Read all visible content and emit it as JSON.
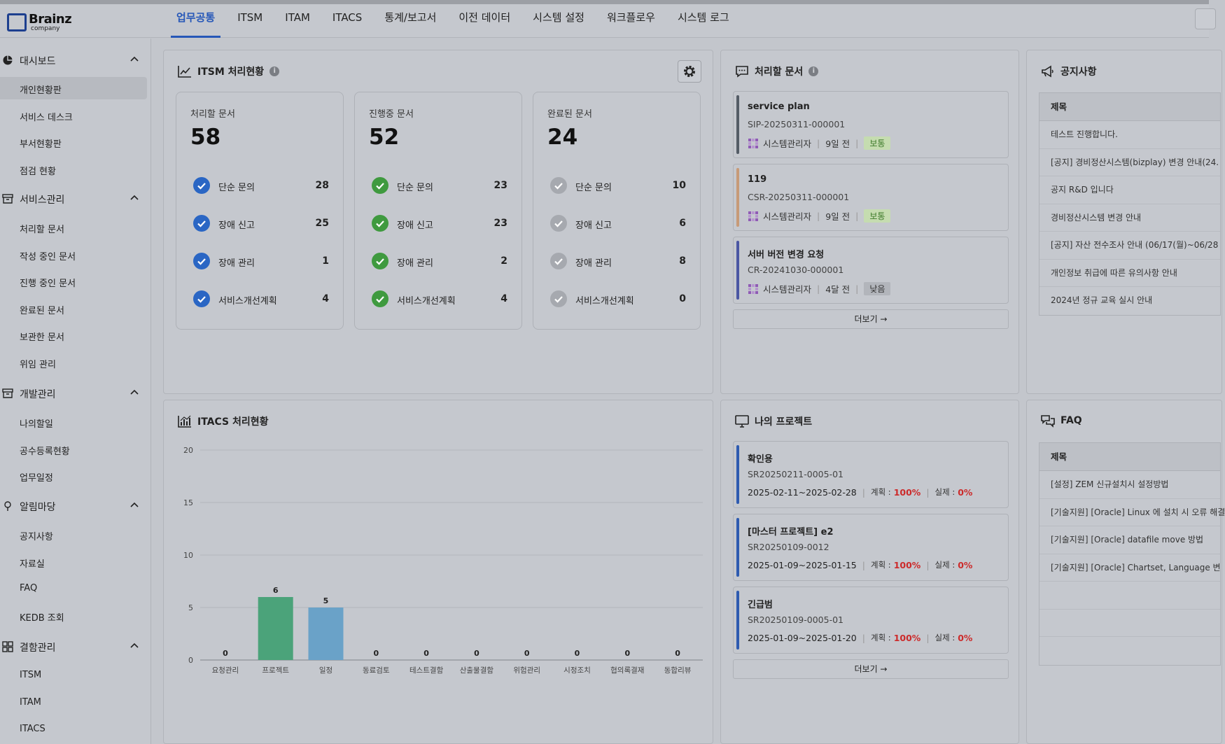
{
  "brand": {
    "name": "Brainz",
    "sub": "company"
  },
  "nav": {
    "tabs": [
      "업무공통",
      "ITSM",
      "ITAM",
      "ITACS",
      "통계/보고서",
      "이전 데이터",
      "시스템 설정",
      "워크플로우",
      "시스템 로그"
    ],
    "active": "업무공통"
  },
  "sidebar": {
    "groups": [
      {
        "label": "대시보드",
        "icon": "pie-chart-icon",
        "items": [
          "개인현황판",
          "서비스 데스크",
          "부서현황판",
          "점검 현황"
        ]
      },
      {
        "label": "서비스관리",
        "icon": "archive-icon",
        "items": [
          "처리할 문서",
          "작성 중인 문서",
          "진행 중인 문서",
          "완료된 문서",
          "보관한 문서",
          "위임 관리"
        ]
      },
      {
        "label": "개발관리",
        "icon": "archive-icon",
        "items": [
          "나의할일",
          "공수등록현황",
          "업무일정"
        ]
      },
      {
        "label": "알림마당",
        "icon": "pin-icon",
        "items": [
          "공지사항",
          "자료실",
          "FAQ",
          "KEDB 조회"
        ]
      },
      {
        "label": "결함관리",
        "icon": "grid-icon",
        "items": [
          "ITSM",
          "ITAM",
          "ITACS"
        ]
      }
    ],
    "active_item": "개인현황판"
  },
  "itsm": {
    "title": "ITSM 처리현황",
    "cards": [
      {
        "title": "처리할 문서",
        "total": "58",
        "status_color": "#2a66c4",
        "rows": [
          {
            "label": "단순 문의",
            "value": "28"
          },
          {
            "label": "장애 신고",
            "value": "25"
          },
          {
            "label": "장애 관리",
            "value": "1"
          },
          {
            "label": "서비스개선계획",
            "value": "4"
          }
        ]
      },
      {
        "title": "진행중 문서",
        "total": "52",
        "status_color": "#3f9a3f",
        "rows": [
          {
            "label": "단순 문의",
            "value": "23"
          },
          {
            "label": "장애 신고",
            "value": "23"
          },
          {
            "label": "장애 관리",
            "value": "2"
          },
          {
            "label": "서비스개선계획",
            "value": "4"
          }
        ]
      },
      {
        "title": "완료된 문서",
        "total": "24",
        "status_color": "#a6a9af",
        "rows": [
          {
            "label": "단순 문의",
            "value": "10"
          },
          {
            "label": "장애 신고",
            "value": "6"
          },
          {
            "label": "장애 관리",
            "value": "8"
          },
          {
            "label": "서비스개선계획",
            "value": "0"
          }
        ]
      }
    ]
  },
  "todo_docs": {
    "title": "처리할 문서",
    "items": [
      {
        "title": "service plan",
        "code": "SIP-20250311-000001",
        "user": "시스템관리자",
        "ago": "9일 전",
        "priority": "보통",
        "bar_color": "#545c66",
        "badge_bg": "#c5dcb0",
        "badge_fg": "#3d7a2a"
      },
      {
        "title": "119",
        "code": "CSR-20250311-000001",
        "user": "시스템관리자",
        "ago": "9일 전",
        "priority": "보통",
        "bar_color": "#c79a78",
        "badge_bg": "#c5dcb0",
        "badge_fg": "#3d7a2a"
      },
      {
        "title": "서버 버전 변경 요청",
        "code": "CR-20241030-000001",
        "user": "시스템관리자",
        "ago": "4달 전",
        "priority": "낮음",
        "bar_color": "#4b57a3",
        "badge_bg": "#b2b5bb",
        "badge_fg": "#333333"
      }
    ],
    "more": "더보기 →"
  },
  "notice": {
    "title": "공지사항",
    "header": "제목",
    "rows": [
      "테스트 진행합니다.",
      "[공지] 경비정산시스템(bizplay) 변경 안내(24.",
      "공지 R&D 입니다",
      "경비정산시스템 변경 안내",
      "[공지] 자산 전수조사 안내 (06/17(월)~06/28",
      "개인정보 취급에 따른 유의사항 안내",
      "2024년 정규 교육 실시 안내"
    ]
  },
  "itacs": {
    "title": "ITACS 처리현황"
  },
  "chart_data": {
    "type": "bar",
    "title": "ITACS 처리현황",
    "categories": [
      "요청관리",
      "프로젝트",
      "일정",
      "동료검토",
      "테스트결함",
      "산출물결함",
      "위험관리",
      "시정조치",
      "협의록결재",
      "동합리뷰"
    ],
    "values": [
      0,
      6,
      5,
      0,
      0,
      0,
      0,
      0,
      0,
      0
    ],
    "colors": {
      "프로젝트": "#4ba37a",
      "일정": "#6aa2c8"
    },
    "ylim": [
      0,
      20
    ],
    "yticks": [
      0,
      5,
      10,
      15,
      20
    ],
    "grid": true
  },
  "projects": {
    "title": "나의 프로젝트",
    "items": [
      {
        "title": "확인용",
        "code": "SR20250211-0005-01",
        "period": "2025-02-11~2025-02-28",
        "plan_label": "계획 :",
        "plan": "100%",
        "actual_label": "실제 :",
        "actual": "0%"
      },
      {
        "title": "[마스터 프로젝트] e2",
        "code": "SR20250109-0012",
        "period": "2025-01-09~2025-01-15",
        "plan_label": "계획 :",
        "plan": "100%",
        "actual_label": "실제 :",
        "actual": "0%"
      },
      {
        "title": "긴급범",
        "code": "SR20250109-0005-01",
        "period": "2025-01-09~2025-01-20",
        "plan_label": "계획 :",
        "plan": "100%",
        "actual_label": "실제 :",
        "actual": "0%"
      }
    ],
    "bar_color": "#2e5bb0",
    "more": "더보기 →"
  },
  "faq": {
    "title": "FAQ",
    "header": "제목",
    "rows": [
      "[설정] ZEM 신규설치시 설정방법",
      "[기술지원] [Oracle] Linux 에 설치 시 오류 해결",
      "[기술지원] [Oracle] datafile move 방법",
      "[기술지원] [Oracle] Chartset, Language 변",
      "",
      "",
      ""
    ]
  }
}
